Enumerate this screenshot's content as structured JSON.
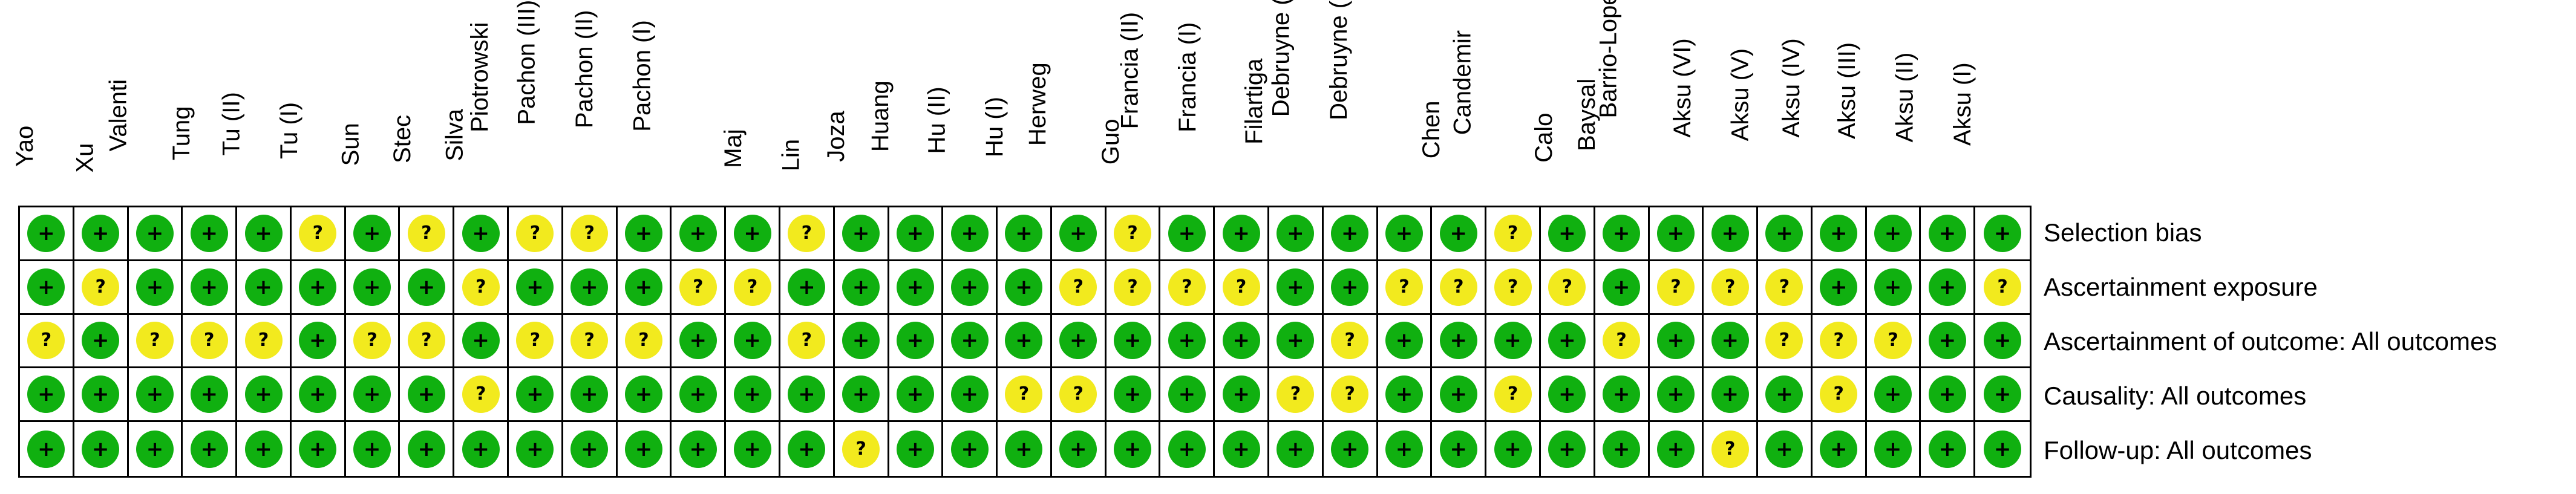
{
  "studies": [
    "Yao",
    "Xu",
    "Valenti",
    "Tung",
    "Tu (II)",
    "Tu (I)",
    "Sun",
    "Stec",
    "Silva",
    "Piotrowski",
    "Pachon (III)",
    "Pachon (II)",
    "Pachon (I)",
    "Maj",
    "Lin",
    "Joza",
    "Huang",
    "Hu (II)",
    "Hu (I)",
    "Herweg",
    "Guo",
    "Francia (II)",
    "Francia (I)",
    "Filartiga",
    "Debruyne (II)",
    "Debruyne (I)",
    "Chen",
    "Candemir",
    "Calo",
    "Baysal",
    "Barrio-Lopez",
    "Aksu (VI)",
    "Aksu (V)",
    "Aksu (IV)",
    "Aksu (III)",
    "Aksu (II)",
    "Aksu (I)"
  ],
  "domains": [
    "Selection bias",
    "Ascertainment exposure",
    "Ascertainment of outcome: All outcomes",
    "Causality: All outcomes",
    "Follow-up: All outcomes"
  ],
  "legend": {
    "low": "+",
    "unclear": "?"
  },
  "colors": {
    "low": "#10b010",
    "unclear": "#f2ea1e"
  },
  "ratings": [
    [
      "+",
      "+",
      "+",
      "+",
      "+",
      "?",
      "+",
      "?",
      "+",
      "?",
      "?",
      "+",
      "+",
      "+",
      "?",
      "+",
      "+",
      "+",
      "+",
      "+",
      "?",
      "+",
      "+",
      "+",
      "+",
      "+",
      "+",
      "?",
      "+",
      "+",
      "+",
      "+",
      "+",
      "+",
      "+",
      "+",
      "+"
    ],
    [
      "+",
      "?",
      "+",
      "+",
      "+",
      "+",
      "+",
      "+",
      "?",
      "+",
      "+",
      "+",
      "?",
      "?",
      "+",
      "+",
      "+",
      "+",
      "+",
      "?",
      "?",
      "?",
      "?",
      "+",
      "+",
      "?",
      "?",
      "?",
      "?",
      "+",
      "?",
      "?",
      "?",
      "+",
      "+",
      "+",
      "?"
    ],
    [
      "?",
      "+",
      "?",
      "?",
      "?",
      "+",
      "?",
      "?",
      "+",
      "?",
      "?",
      "?",
      "+",
      "+",
      "?",
      "+",
      "+",
      "+",
      "+",
      "+",
      "+",
      "+",
      "+",
      "+",
      "?",
      "+",
      "+",
      "+",
      "+",
      "?",
      "+",
      "+",
      "?",
      "?",
      "?",
      "+",
      "+"
    ],
    [
      "+",
      "+",
      "+",
      "+",
      "+",
      "+",
      "+",
      "+",
      "?",
      "+",
      "+",
      "+",
      "+",
      "+",
      "+",
      "+",
      "+",
      "+",
      "?",
      "?",
      "+",
      "+",
      "+",
      "?",
      "?",
      "+",
      "+",
      "?",
      "+",
      "+",
      "+",
      "+",
      "+",
      "?",
      "+",
      "+",
      "+"
    ],
    [
      "+",
      "+",
      "+",
      "+",
      "+",
      "+",
      "+",
      "+",
      "+",
      "+",
      "+",
      "+",
      "+",
      "+",
      "+",
      "?",
      "+",
      "+",
      "+",
      "+",
      "+",
      "+",
      "+",
      "+",
      "+",
      "+",
      "+",
      "+",
      "+",
      "+",
      "+",
      "?",
      "+",
      "+",
      "+",
      "+",
      "+"
    ]
  ]
}
